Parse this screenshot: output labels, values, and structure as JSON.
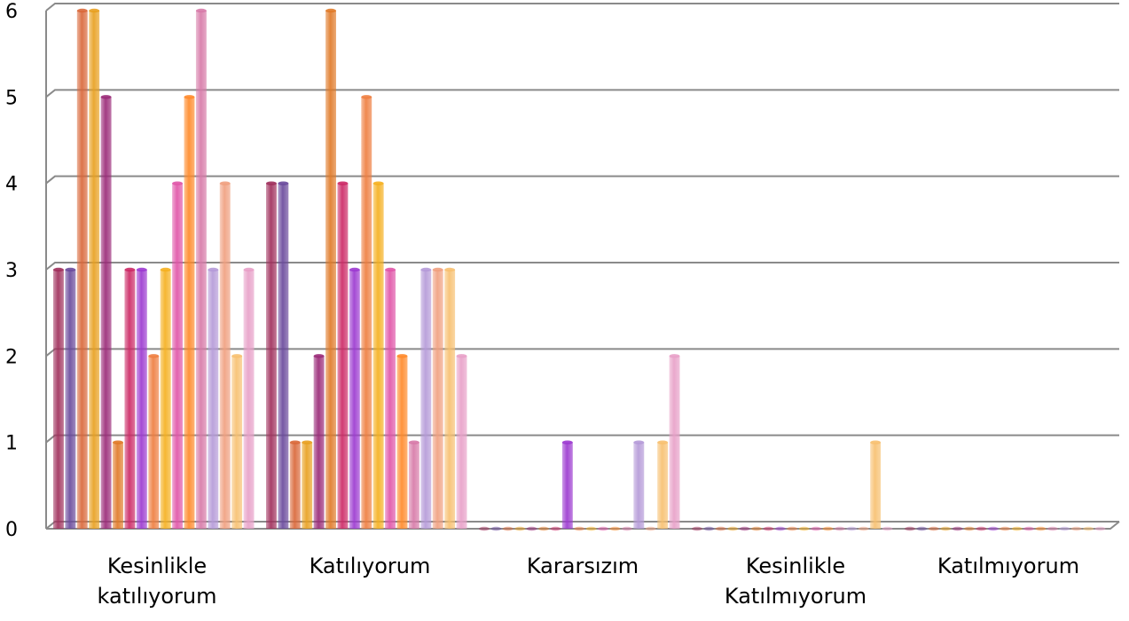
{
  "chart_data": {
    "type": "bar",
    "style": "3d-cylinder-clustered",
    "categories": [
      [
        "Kesinlikle",
        "katılıyorum"
      ],
      [
        "Katılıyorum"
      ],
      [
        "Kararsızım"
      ],
      [
        "Kesinlikle",
        "Katılmıyorum"
      ],
      [
        "Katılmıyorum"
      ]
    ],
    "yticks": [
      "0",
      "1",
      "2",
      "3",
      "4",
      "5",
      "6"
    ],
    "ylim": [
      0,
      6
    ],
    "grid": true,
    "legend": "none",
    "series_count": 17,
    "series": [
      {
        "color": "#a0305c",
        "values": [
          3,
          4,
          0,
          0,
          0
        ]
      },
      {
        "color": "#6a4a9c",
        "values": [
          3,
          4,
          0,
          0,
          0
        ]
      },
      {
        "color": "#d9683a",
        "values": [
          6,
          1,
          0,
          0,
          0
        ]
      },
      {
        "color": "#e8a020",
        "values": [
          6,
          1,
          0,
          0,
          0
        ]
      },
      {
        "color": "#9a2a78",
        "values": [
          5,
          2,
          0,
          0,
          0
        ]
      },
      {
        "color": "#e07a28",
        "values": [
          1,
          6,
          0,
          0,
          0
        ]
      },
      {
        "color": "#cc2a66",
        "values": [
          3,
          4,
          0,
          0,
          0
        ]
      },
      {
        "color": "#9c3ad0",
        "values": [
          3,
          3,
          1,
          0,
          0
        ]
      },
      {
        "color": "#ee7e40",
        "values": [
          2,
          5,
          0,
          0,
          0
        ]
      },
      {
        "color": "#f5b020",
        "values": [
          3,
          4,
          0,
          0,
          0
        ]
      },
      {
        "color": "#e055a8",
        "values": [
          4,
          3,
          0,
          0,
          0
        ]
      },
      {
        "color": "#ff8a2a",
        "values": [
          5,
          2,
          0,
          0,
          0
        ]
      },
      {
        "color": "#d77aa8",
        "values": [
          6,
          1,
          0,
          0,
          0
        ]
      },
      {
        "color": "#b59ad8",
        "values": [
          3,
          3,
          1,
          0,
          0
        ]
      },
      {
        "color": "#f0a080",
        "values": [
          4,
          3,
          0,
          0,
          0
        ]
      },
      {
        "color": "#f7c070",
        "values": [
          2,
          3,
          1,
          1,
          0
        ]
      },
      {
        "color": "#e8a0c8",
        "values": [
          3,
          2,
          2,
          0,
          0
        ]
      }
    ]
  }
}
